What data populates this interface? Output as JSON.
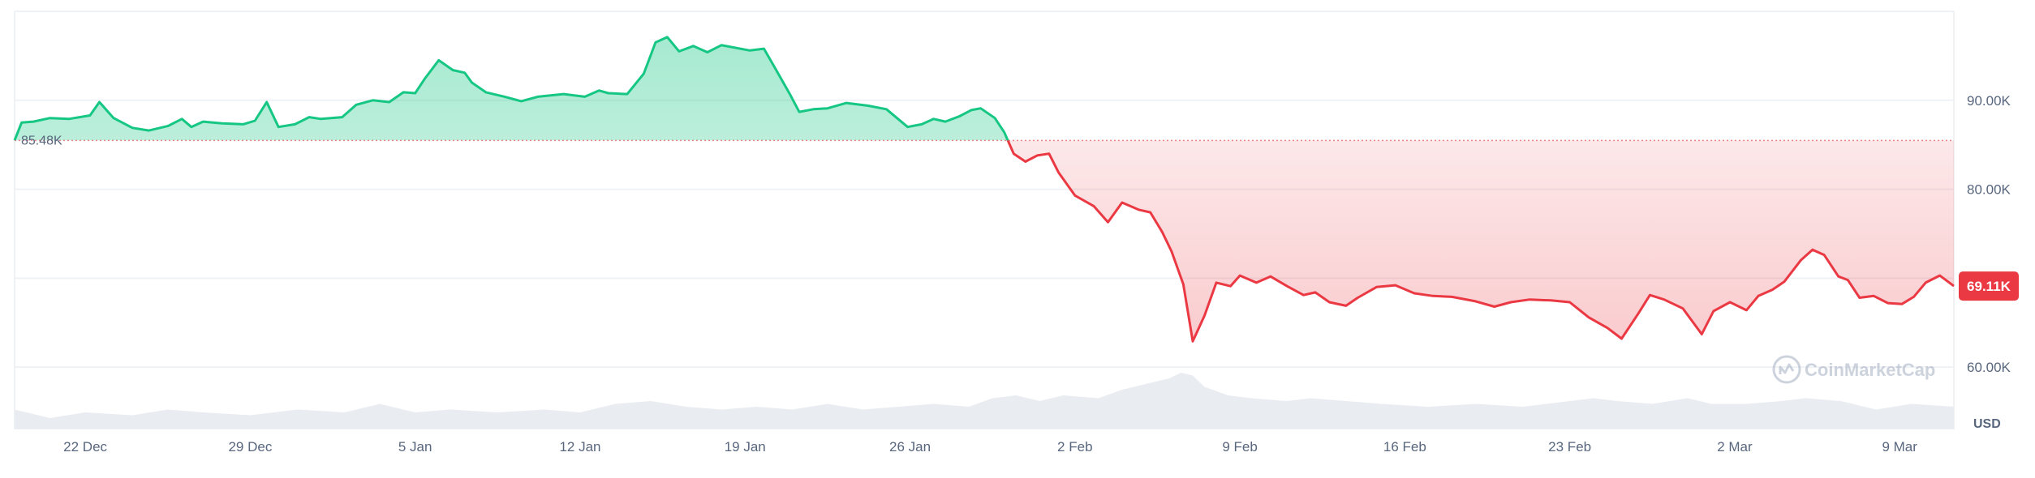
{
  "chart_data": {
    "type": "area",
    "baseline": 85.48,
    "baseline_label": "85.48K",
    "last_value": 69.11,
    "last_label": "69.11K",
    "y_ticks": [
      {
        "value": 90,
        "label": "90.00K"
      },
      {
        "value": 80,
        "label": "80.00K"
      },
      {
        "value": 60,
        "label": "60.00K"
      }
    ],
    "y_gridlines": [
      90,
      80,
      70,
      60
    ],
    "ylim": [
      53,
      100
    ],
    "y_unit": "USD",
    "x_ticks": [
      {
        "day": 3,
        "label": "22 Dec"
      },
      {
        "day": 10,
        "label": "29 Dec"
      },
      {
        "day": 17,
        "label": "5 Jan"
      },
      {
        "day": 24,
        "label": "12 Jan"
      },
      {
        "day": 31,
        "label": "19 Jan"
      },
      {
        "day": 38,
        "label": "26 Jan"
      },
      {
        "day": 45,
        "label": "2 Feb"
      },
      {
        "day": 52,
        "label": "9 Feb"
      },
      {
        "day": 59,
        "label": "16 Feb"
      },
      {
        "day": 66,
        "label": "23 Feb"
      },
      {
        "day": 73,
        "label": "2 Mar"
      },
      {
        "day": 80,
        "label": "9 Mar"
      }
    ],
    "xlim": [
      0,
      82.3
    ],
    "above_color": "#16c784",
    "below_color": "#ea3943",
    "series": [
      {
        "values": [
          [
            0.0,
            85.5
          ],
          [
            0.3,
            87.5
          ],
          [
            0.8,
            87.6
          ],
          [
            1.5,
            88.0
          ],
          [
            2.3,
            87.9
          ],
          [
            3.2,
            88.3
          ],
          [
            3.6,
            89.8
          ],
          [
            4.2,
            88.0
          ],
          [
            5.0,
            86.9
          ],
          [
            5.7,
            86.6
          ],
          [
            6.5,
            87.1
          ],
          [
            7.1,
            87.9
          ],
          [
            7.5,
            87.0
          ],
          [
            8.0,
            87.6
          ],
          [
            8.8,
            87.4
          ],
          [
            9.7,
            87.3
          ],
          [
            10.2,
            87.7
          ],
          [
            10.7,
            89.8
          ],
          [
            11.2,
            87.0
          ],
          [
            11.9,
            87.3
          ],
          [
            12.5,
            88.1
          ],
          [
            13.0,
            87.9
          ],
          [
            13.9,
            88.1
          ],
          [
            14.5,
            89.5
          ],
          [
            15.2,
            90.0
          ],
          [
            15.9,
            89.8
          ],
          [
            16.5,
            90.9
          ],
          [
            17.0,
            90.8
          ],
          [
            17.4,
            92.4
          ],
          [
            18.0,
            94.5
          ],
          [
            18.6,
            93.4
          ],
          [
            19.1,
            93.1
          ],
          [
            19.4,
            92.0
          ],
          [
            20.0,
            90.9
          ],
          [
            20.8,
            90.4
          ],
          [
            21.5,
            89.9
          ],
          [
            22.2,
            90.4
          ],
          [
            23.3,
            90.7
          ],
          [
            24.2,
            90.4
          ],
          [
            24.8,
            91.1
          ],
          [
            25.2,
            90.8
          ],
          [
            26.0,
            90.7
          ],
          [
            26.7,
            93.0
          ],
          [
            27.2,
            96.5
          ],
          [
            27.7,
            97.1
          ],
          [
            28.2,
            95.5
          ],
          [
            28.8,
            96.1
          ],
          [
            29.4,
            95.4
          ],
          [
            30.0,
            96.2
          ],
          [
            31.2,
            95.6
          ],
          [
            31.8,
            95.8
          ],
          [
            32.3,
            93.5
          ],
          [
            32.9,
            90.7
          ],
          [
            33.3,
            88.7
          ],
          [
            33.9,
            89.0
          ],
          [
            34.5,
            89.1
          ],
          [
            35.3,
            89.7
          ],
          [
            36.2,
            89.4
          ],
          [
            37.0,
            89.0
          ],
          [
            37.9,
            87.0
          ],
          [
            38.5,
            87.3
          ],
          [
            39.0,
            87.9
          ],
          [
            39.5,
            87.6
          ],
          [
            40.1,
            88.2
          ],
          [
            40.6,
            88.9
          ],
          [
            41.0,
            89.1
          ],
          [
            41.6,
            88.0
          ],
          [
            42.0,
            86.4
          ],
          [
            42.4,
            84.0
          ],
          [
            42.9,
            83.1
          ],
          [
            43.4,
            83.8
          ],
          [
            43.9,
            84.0
          ],
          [
            44.3,
            81.9
          ],
          [
            45.0,
            79.3
          ],
          [
            45.8,
            78.1
          ],
          [
            46.4,
            76.3
          ],
          [
            47.0,
            78.5
          ],
          [
            47.7,
            77.7
          ],
          [
            48.2,
            77.4
          ],
          [
            48.7,
            75.2
          ],
          [
            49.1,
            73.0
          ],
          [
            49.6,
            69.3
          ],
          [
            50.0,
            62.9
          ],
          [
            50.5,
            65.8
          ],
          [
            51.0,
            69.5
          ],
          [
            51.6,
            69.1
          ],
          [
            52.0,
            70.3
          ],
          [
            52.7,
            69.5
          ],
          [
            53.3,
            70.2
          ],
          [
            54.0,
            69.1
          ],
          [
            54.7,
            68.1
          ],
          [
            55.2,
            68.4
          ],
          [
            55.8,
            67.3
          ],
          [
            56.5,
            66.9
          ],
          [
            57.0,
            67.8
          ],
          [
            57.8,
            69.0
          ],
          [
            58.6,
            69.2
          ],
          [
            59.4,
            68.3
          ],
          [
            60.2,
            68.0
          ],
          [
            61.0,
            67.9
          ],
          [
            62.0,
            67.4
          ],
          [
            62.8,
            66.8
          ],
          [
            63.5,
            67.3
          ],
          [
            64.3,
            67.6
          ],
          [
            65.2,
            67.5
          ],
          [
            66.0,
            67.3
          ],
          [
            66.8,
            65.6
          ],
          [
            67.6,
            64.4
          ],
          [
            68.2,
            63.2
          ],
          [
            68.9,
            66.0
          ],
          [
            69.4,
            68.1
          ],
          [
            70.0,
            67.6
          ],
          [
            70.8,
            66.6
          ],
          [
            71.6,
            63.7
          ],
          [
            72.1,
            66.3
          ],
          [
            72.8,
            67.3
          ],
          [
            73.5,
            66.4
          ],
          [
            74.0,
            68.0
          ],
          [
            74.6,
            68.7
          ],
          [
            75.1,
            69.6
          ],
          [
            75.8,
            72.0
          ],
          [
            76.3,
            73.2
          ],
          [
            76.8,
            72.6
          ],
          [
            77.4,
            70.2
          ],
          [
            77.8,
            69.8
          ],
          [
            78.3,
            67.8
          ],
          [
            78.9,
            68.0
          ],
          [
            79.5,
            67.2
          ],
          [
            80.1,
            67.1
          ],
          [
            80.6,
            67.9
          ],
          [
            81.1,
            69.5
          ],
          [
            81.7,
            70.3
          ],
          [
            82.3,
            69.11
          ]
        ]
      }
    ],
    "volume": [
      [
        0.0,
        0.35
      ],
      [
        1.5,
        0.2
      ],
      [
        3.0,
        0.3
      ],
      [
        5.0,
        0.25
      ],
      [
        6.5,
        0.35
      ],
      [
        8.0,
        0.3
      ],
      [
        10.0,
        0.25
      ],
      [
        12.0,
        0.35
      ],
      [
        14.0,
        0.3
      ],
      [
        15.5,
        0.45
      ],
      [
        17.0,
        0.3
      ],
      [
        18.5,
        0.35
      ],
      [
        20.5,
        0.3
      ],
      [
        22.5,
        0.35
      ],
      [
        24.0,
        0.3
      ],
      [
        25.5,
        0.45
      ],
      [
        27.0,
        0.5
      ],
      [
        28.5,
        0.4
      ],
      [
        30.0,
        0.35
      ],
      [
        31.5,
        0.4
      ],
      [
        33.0,
        0.35
      ],
      [
        34.5,
        0.45
      ],
      [
        36.0,
        0.35
      ],
      [
        37.5,
        0.4
      ],
      [
        39.0,
        0.45
      ],
      [
        40.5,
        0.4
      ],
      [
        41.5,
        0.55
      ],
      [
        42.5,
        0.6
      ],
      [
        43.5,
        0.5
      ],
      [
        44.5,
        0.6
      ],
      [
        46.0,
        0.55
      ],
      [
        47.0,
        0.7
      ],
      [
        48.0,
        0.8
      ],
      [
        49.0,
        0.9
      ],
      [
        49.5,
        1.0
      ],
      [
        50.0,
        0.95
      ],
      [
        50.5,
        0.75
      ],
      [
        51.5,
        0.6
      ],
      [
        52.5,
        0.55
      ],
      [
        54.0,
        0.5
      ],
      [
        55.0,
        0.55
      ],
      [
        56.5,
        0.5
      ],
      [
        58.0,
        0.45
      ],
      [
        60.0,
        0.4
      ],
      [
        62.0,
        0.45
      ],
      [
        64.0,
        0.4
      ],
      [
        66.0,
        0.5
      ],
      [
        67.0,
        0.55
      ],
      [
        68.0,
        0.5
      ],
      [
        69.5,
        0.45
      ],
      [
        71.0,
        0.55
      ],
      [
        72.0,
        0.45
      ],
      [
        73.5,
        0.45
      ],
      [
        75.0,
        0.5
      ],
      [
        76.0,
        0.55
      ],
      [
        77.5,
        0.5
      ],
      [
        79.0,
        0.35
      ],
      [
        80.5,
        0.45
      ],
      [
        82.3,
        0.4
      ]
    ]
  },
  "watermark": {
    "text": "CoinMarketCap"
  }
}
